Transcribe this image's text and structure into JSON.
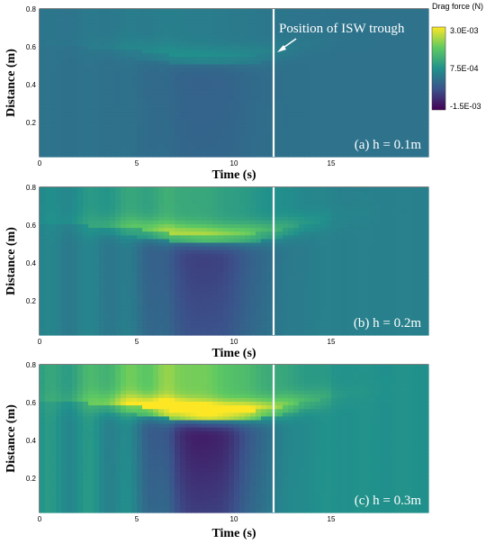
{
  "chart_data": {
    "type": "heatmap",
    "colormap": "viridis",
    "colorbar": {
      "title": "Drag force (N)",
      "ticks": [
        "3.0E-03",
        "7.5E-04",
        "-1.5E-03"
      ],
      "range": [
        -0.0015,
        0.003
      ]
    },
    "annotation": "Position of ISW trough",
    "trough_time": 12.0,
    "panels": [
      {
        "label": "(a) h = 0.1m",
        "xlabel": "Time (s)",
        "ylabel": "Distance (m)",
        "xlim": [
          0,
          20
        ],
        "ylim": [
          0.02,
          0.8
        ],
        "xticks": [
          "0",
          "5",
          "10",
          "15"
        ],
        "yticks": [
          "0.2",
          "0.4",
          "0.6",
          "0.8"
        ],
        "z_range": [
          -0.0008,
          0.0012
        ]
      },
      {
        "label": "(b) h = 0.2m",
        "xlabel": "Time (s)",
        "ylabel": "Distance (m)",
        "xlim": [
          0,
          20
        ],
        "ylim": [
          0.02,
          0.8
        ],
        "xticks": [
          "0",
          "5",
          "10",
          "15"
        ],
        "yticks": [
          "0.2",
          "0.4",
          "0.6",
          "0.8"
        ],
        "z_range": [
          -0.0013,
          0.0022
        ]
      },
      {
        "label": "(c) h = 0.3m",
        "xlabel": "Time (s)",
        "ylabel": "Distance (m)",
        "xlim": [
          0,
          20
        ],
        "ylim": [
          0.02,
          0.8
        ],
        "xticks": [
          "0",
          "5",
          "10",
          "15"
        ],
        "yticks": [
          "0.2",
          "0.4",
          "0.6",
          "0.8"
        ],
        "z_range": [
          -0.0015,
          0.003
        ]
      }
    ]
  }
}
